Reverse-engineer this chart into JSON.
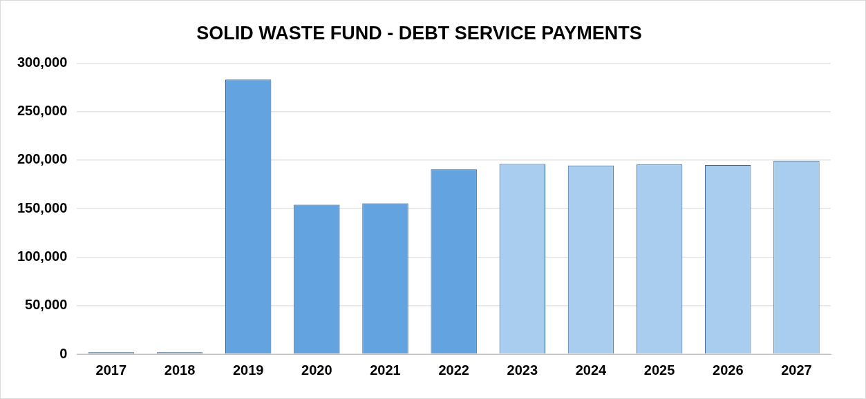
{
  "chart_data": {
    "type": "bar",
    "title": "SOLID WASTE FUND - DEBT SERVICE PAYMENTS",
    "categories": [
      "2017",
      "2018",
      "2019",
      "2020",
      "2021",
      "2022",
      "2023",
      "2024",
      "2025",
      "2026",
      "2027"
    ],
    "values": [
      2000,
      2000,
      283000,
      154000,
      155500,
      190500,
      196000,
      194500,
      195500,
      195000,
      199500
    ],
    "colors": [
      "#62a3e0",
      "#62a3e0",
      "#62a3e0",
      "#62a3e0",
      "#62a3e0",
      "#62a3e0",
      "#a8cdef",
      "#a8cdef",
      "#a8cdef",
      "#a8cdef",
      "#a8cdef"
    ],
    "ylim": [
      0,
      300000
    ],
    "yticks": [
      0,
      {
        "value": 50000,
        "label": "50,000"
      },
      {
        "value": 100000,
        "label": "100,000"
      },
      {
        "value": 150000,
        "label": "150,000"
      },
      {
        "value": 200000,
        "label": "200,000"
      },
      {
        "value": 250000,
        "label": "250,000"
      },
      {
        "value": 300000,
        "label": "300,000"
      }
    ],
    "grid": "y",
    "legend": false
  }
}
